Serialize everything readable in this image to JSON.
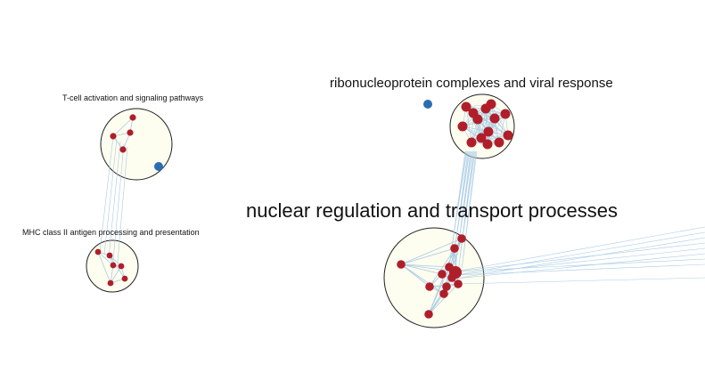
{
  "clusters": [
    {
      "id": "tcell",
      "label": "T-cell activation and signaling pathways"
    },
    {
      "id": "mhc",
      "label": "MHC class II antigen processing and presentation"
    },
    {
      "id": "ribo",
      "label": "ribonucleoprotein complexes and viral response"
    },
    {
      "id": "nuclear",
      "label": "nuclear regulation and transport processes"
    }
  ],
  "colors": {
    "node": "#b01e2a",
    "node_outlier": "#2a6db5",
    "edge": "#a9cbe3",
    "cluster_fill": "#fdfdf0",
    "cluster_border": "#222222"
  }
}
